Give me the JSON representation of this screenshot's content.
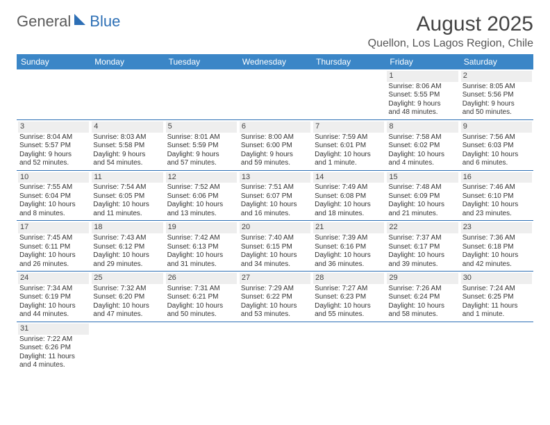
{
  "logo": {
    "part1": "General",
    "part2": "Blue",
    "triangle_color": "#2d6fb5"
  },
  "header": {
    "month_title": "August 2025",
    "location": "Quellon, Los Lagos Region, Chile"
  },
  "colors": {
    "header_bg": "#3b86c7",
    "week_divider": "#2d6fb5",
    "daynum_bg": "#eeeeee",
    "logo_gray": "#5a5a5a"
  },
  "dow": [
    "Sunday",
    "Monday",
    "Tuesday",
    "Wednesday",
    "Thursday",
    "Friday",
    "Saturday"
  ],
  "weeks": [
    [
      null,
      null,
      null,
      null,
      null,
      {
        "n": "1",
        "sr": "Sunrise: 8:06 AM",
        "ss": "Sunset: 5:55 PM",
        "d1": "Daylight: 9 hours",
        "d2": "and 48 minutes."
      },
      {
        "n": "2",
        "sr": "Sunrise: 8:05 AM",
        "ss": "Sunset: 5:56 PM",
        "d1": "Daylight: 9 hours",
        "d2": "and 50 minutes."
      }
    ],
    [
      {
        "n": "3",
        "sr": "Sunrise: 8:04 AM",
        "ss": "Sunset: 5:57 PM",
        "d1": "Daylight: 9 hours",
        "d2": "and 52 minutes."
      },
      {
        "n": "4",
        "sr": "Sunrise: 8:03 AM",
        "ss": "Sunset: 5:58 PM",
        "d1": "Daylight: 9 hours",
        "d2": "and 54 minutes."
      },
      {
        "n": "5",
        "sr": "Sunrise: 8:01 AM",
        "ss": "Sunset: 5:59 PM",
        "d1": "Daylight: 9 hours",
        "d2": "and 57 minutes."
      },
      {
        "n": "6",
        "sr": "Sunrise: 8:00 AM",
        "ss": "Sunset: 6:00 PM",
        "d1": "Daylight: 9 hours",
        "d2": "and 59 minutes."
      },
      {
        "n": "7",
        "sr": "Sunrise: 7:59 AM",
        "ss": "Sunset: 6:01 PM",
        "d1": "Daylight: 10 hours",
        "d2": "and 1 minute."
      },
      {
        "n": "8",
        "sr": "Sunrise: 7:58 AM",
        "ss": "Sunset: 6:02 PM",
        "d1": "Daylight: 10 hours",
        "d2": "and 4 minutes."
      },
      {
        "n": "9",
        "sr": "Sunrise: 7:56 AM",
        "ss": "Sunset: 6:03 PM",
        "d1": "Daylight: 10 hours",
        "d2": "and 6 minutes."
      }
    ],
    [
      {
        "n": "10",
        "sr": "Sunrise: 7:55 AM",
        "ss": "Sunset: 6:04 PM",
        "d1": "Daylight: 10 hours",
        "d2": "and 8 minutes."
      },
      {
        "n": "11",
        "sr": "Sunrise: 7:54 AM",
        "ss": "Sunset: 6:05 PM",
        "d1": "Daylight: 10 hours",
        "d2": "and 11 minutes."
      },
      {
        "n": "12",
        "sr": "Sunrise: 7:52 AM",
        "ss": "Sunset: 6:06 PM",
        "d1": "Daylight: 10 hours",
        "d2": "and 13 minutes."
      },
      {
        "n": "13",
        "sr": "Sunrise: 7:51 AM",
        "ss": "Sunset: 6:07 PM",
        "d1": "Daylight: 10 hours",
        "d2": "and 16 minutes."
      },
      {
        "n": "14",
        "sr": "Sunrise: 7:49 AM",
        "ss": "Sunset: 6:08 PM",
        "d1": "Daylight: 10 hours",
        "d2": "and 18 minutes."
      },
      {
        "n": "15",
        "sr": "Sunrise: 7:48 AM",
        "ss": "Sunset: 6:09 PM",
        "d1": "Daylight: 10 hours",
        "d2": "and 21 minutes."
      },
      {
        "n": "16",
        "sr": "Sunrise: 7:46 AM",
        "ss": "Sunset: 6:10 PM",
        "d1": "Daylight: 10 hours",
        "d2": "and 23 minutes."
      }
    ],
    [
      {
        "n": "17",
        "sr": "Sunrise: 7:45 AM",
        "ss": "Sunset: 6:11 PM",
        "d1": "Daylight: 10 hours",
        "d2": "and 26 minutes."
      },
      {
        "n": "18",
        "sr": "Sunrise: 7:43 AM",
        "ss": "Sunset: 6:12 PM",
        "d1": "Daylight: 10 hours",
        "d2": "and 29 minutes."
      },
      {
        "n": "19",
        "sr": "Sunrise: 7:42 AM",
        "ss": "Sunset: 6:13 PM",
        "d1": "Daylight: 10 hours",
        "d2": "and 31 minutes."
      },
      {
        "n": "20",
        "sr": "Sunrise: 7:40 AM",
        "ss": "Sunset: 6:15 PM",
        "d1": "Daylight: 10 hours",
        "d2": "and 34 minutes."
      },
      {
        "n": "21",
        "sr": "Sunrise: 7:39 AM",
        "ss": "Sunset: 6:16 PM",
        "d1": "Daylight: 10 hours",
        "d2": "and 36 minutes."
      },
      {
        "n": "22",
        "sr": "Sunrise: 7:37 AM",
        "ss": "Sunset: 6:17 PM",
        "d1": "Daylight: 10 hours",
        "d2": "and 39 minutes."
      },
      {
        "n": "23",
        "sr": "Sunrise: 7:36 AM",
        "ss": "Sunset: 6:18 PM",
        "d1": "Daylight: 10 hours",
        "d2": "and 42 minutes."
      }
    ],
    [
      {
        "n": "24",
        "sr": "Sunrise: 7:34 AM",
        "ss": "Sunset: 6:19 PM",
        "d1": "Daylight: 10 hours",
        "d2": "and 44 minutes."
      },
      {
        "n": "25",
        "sr": "Sunrise: 7:32 AM",
        "ss": "Sunset: 6:20 PM",
        "d1": "Daylight: 10 hours",
        "d2": "and 47 minutes."
      },
      {
        "n": "26",
        "sr": "Sunrise: 7:31 AM",
        "ss": "Sunset: 6:21 PM",
        "d1": "Daylight: 10 hours",
        "d2": "and 50 minutes."
      },
      {
        "n": "27",
        "sr": "Sunrise: 7:29 AM",
        "ss": "Sunset: 6:22 PM",
        "d1": "Daylight: 10 hours",
        "d2": "and 53 minutes."
      },
      {
        "n": "28",
        "sr": "Sunrise: 7:27 AM",
        "ss": "Sunset: 6:23 PM",
        "d1": "Daylight: 10 hours",
        "d2": "and 55 minutes."
      },
      {
        "n": "29",
        "sr": "Sunrise: 7:26 AM",
        "ss": "Sunset: 6:24 PM",
        "d1": "Daylight: 10 hours",
        "d2": "and 58 minutes."
      },
      {
        "n": "30",
        "sr": "Sunrise: 7:24 AM",
        "ss": "Sunset: 6:25 PM",
        "d1": "Daylight: 11 hours",
        "d2": "and 1 minute."
      }
    ],
    [
      {
        "n": "31",
        "sr": "Sunrise: 7:22 AM",
        "ss": "Sunset: 6:26 PM",
        "d1": "Daylight: 11 hours",
        "d2": "and 4 minutes."
      },
      null,
      null,
      null,
      null,
      null,
      null
    ]
  ]
}
